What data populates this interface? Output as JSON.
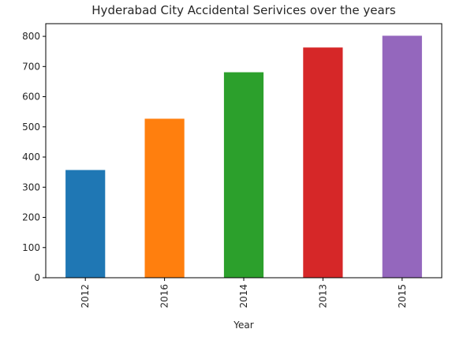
{
  "chart_data": {
    "type": "bar",
    "title": "Hyderabad City Accidental Serivices over the years",
    "xlabel": "Year",
    "ylabel": "",
    "categories": [
      "2012",
      "2016",
      "2014",
      "2013",
      "2015"
    ],
    "values": [
      357,
      527,
      681,
      763,
      802
    ],
    "colors": [
      "#1f77b4",
      "#ff7f0e",
      "#2ca02c",
      "#d62728",
      "#9467bd"
    ],
    "ylim": [
      0,
      842
    ],
    "yticks": [
      "0",
      "100",
      "200",
      "300",
      "400",
      "500",
      "600",
      "700",
      "800"
    ],
    "grid": false,
    "legend": "none"
  }
}
